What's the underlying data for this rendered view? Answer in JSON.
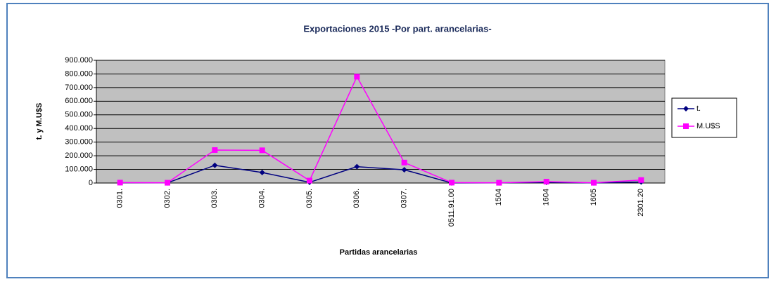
{
  "chart_data": {
    "type": "line",
    "title": "Exportaciones  2015 -Por part. arancelarias-",
    "x_label": "Partidas arancelarias",
    "y_label": "t. y M.U$S",
    "categories": [
      "0301.",
      "0302.",
      "0303.",
      "0304.",
      "0305.",
      "0306.",
      "0307.",
      "0511.91.00",
      "1504",
      "1604",
      "1605",
      "2301.20"
    ],
    "series": [
      {
        "name": "t.",
        "color": "#000080",
        "marker": "diamond",
        "values": [
          2000,
          1000,
          130000,
          77000,
          5000,
          120000,
          97000,
          500,
          1000,
          5000,
          500,
          8000
        ]
      },
      {
        "name": "M.U$S",
        "color": "#ff00ff",
        "marker": "square",
        "values": [
          3000,
          2000,
          242000,
          240000,
          18000,
          780000,
          150000,
          3000,
          2000,
          10000,
          2000,
          22000
        ]
      }
    ],
    "ylim": [
      0,
      900000
    ],
    "yticks": [
      0,
      {
        "value": 100000,
        "label": "100.000"
      },
      {
        "value": 200000,
        "label": "200.000"
      },
      {
        "value": 300000,
        "label": "300.000"
      },
      {
        "value": 400000,
        "label": "400.000"
      },
      {
        "value": 500000,
        "label": "500.000"
      },
      {
        "value": 600000,
        "label": "600.000"
      },
      {
        "value": 700000,
        "label": "700.000"
      },
      {
        "value": 800000,
        "label": "800.000"
      },
      {
        "value": 900000,
        "label": "900.000"
      }
    ],
    "grid": true,
    "legend": "right"
  }
}
